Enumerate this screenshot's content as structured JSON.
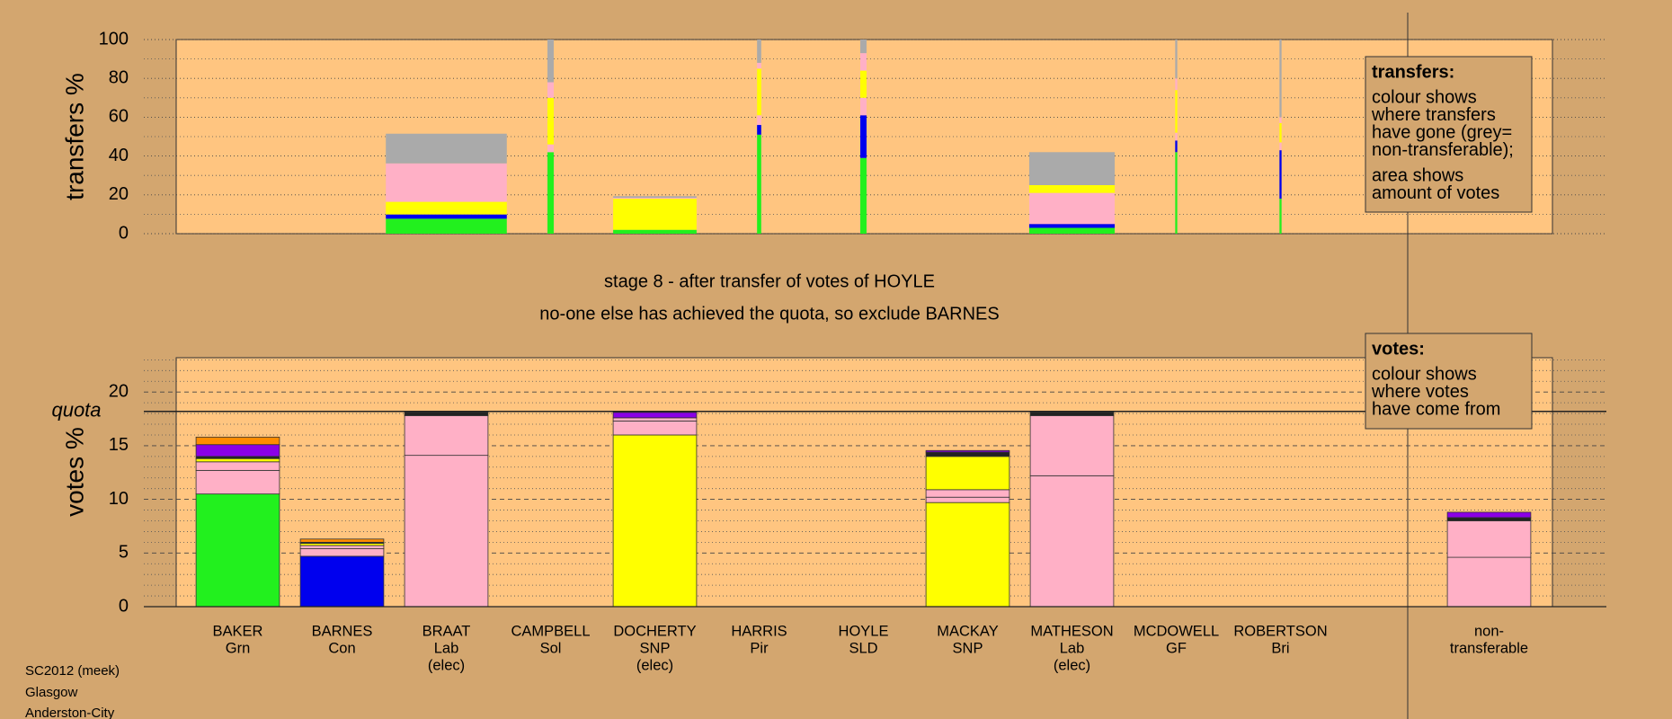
{
  "chart_data": [
    {
      "type": "stacked-bar",
      "ylabel": "transfers %",
      "ylim": [
        0,
        100
      ],
      "yticks": [
        0,
        20,
        40,
        60,
        80,
        100
      ],
      "minor_yticks": [
        10,
        30,
        50,
        70,
        90
      ],
      "grid_style": "dotted",
      "widths": [
        0,
        0,
        1.16,
        0.06,
        0.8,
        0.04,
        0.06,
        0,
        0.82,
        0.02,
        0.02,
        0
      ],
      "series": [
        {
          "color": "#22f01e",
          "values": [
            0,
            0,
            7.7,
            42,
            2,
            51,
            39,
            0,
            3,
            42,
            18,
            0
          ]
        },
        {
          "color": "#0000ee",
          "values": [
            0,
            0,
            2.2,
            0,
            0,
            5,
            22,
            0,
            2,
            6,
            25,
            0
          ]
        },
        {
          "color": "#ffb0c6",
          "values": [
            0,
            0,
            0,
            4,
            0,
            5,
            9,
            0,
            16,
            4,
            4,
            0
          ]
        },
        {
          "color": "#ffff00",
          "values": [
            0,
            0,
            3,
            12,
            0,
            12,
            7,
            0,
            2,
            11,
            5,
            0
          ]
        },
        {
          "color": "#ffff00",
          "values": [
            0,
            0,
            3.5,
            12,
            16,
            12,
            7,
            0,
            2,
            11,
            5,
            0
          ]
        },
        {
          "color": "#ffb0c6",
          "values": [
            0,
            0,
            19.8,
            8,
            0.5,
            3,
            9,
            0,
            0,
            6,
            3,
            0
          ]
        },
        {
          "color": "#aaaaaa",
          "values": [
            0,
            0,
            15.3,
            22,
            0.8,
            12,
            7,
            0,
            17,
            20,
            40,
            0
          ]
        }
      ],
      "legend": {
        "title": "transfers:",
        "lines": [
          [
            "colour shows",
            "where transfers",
            "have gone (grey=",
            "non-transferable);"
          ],
          [
            "area shows",
            "amount of votes"
          ]
        ]
      }
    },
    {
      "type": "stacked-bar",
      "ylabel": "votes %",
      "ylim": [
        0,
        23.2
      ],
      "yticks": [
        0,
        5,
        10,
        15,
        20
      ],
      "minor_yticks": [
        1,
        2,
        3,
        4,
        6,
        7,
        8,
        9,
        11,
        12,
        13,
        14,
        16,
        17,
        18,
        19,
        21,
        22,
        23
      ],
      "grid_style": "dashed",
      "quota": 18.2,
      "quota_label": "quota",
      "categories": [
        [
          "BAKER",
          "Grn"
        ],
        [
          "BARNES",
          "Con"
        ],
        [
          "BRAAT",
          "Lab",
          "(elec)"
        ],
        [
          "CAMPBELL",
          "Sol"
        ],
        [
          "DOCHERTY",
          "SNP",
          "(elec)"
        ],
        [
          "HARRIS",
          "Pir"
        ],
        [
          "HOYLE",
          "SLD"
        ],
        [
          "MACKAY",
          "SNP"
        ],
        [
          "MATHESON",
          "Lab",
          "(elec)"
        ],
        [
          "MCDOWELL",
          "GF"
        ],
        [
          "ROBERTSON",
          "Bri"
        ],
        [
          "non-",
          "transferable"
        ]
      ],
      "series": [
        {
          "colors": [
            "#22f01e",
            "#0000ee",
            "#ffb0c6",
            null,
            "#ffff00",
            null,
            null,
            "#ffff00",
            "#ffb0c6",
            null,
            null,
            null
          ],
          "values": [
            10.5,
            4.7,
            14.1,
            0,
            16.0,
            0,
            0,
            9.7,
            12.2,
            0,
            0,
            0
          ]
        },
        {
          "color": "#ffb0c6",
          "values": [
            2.2,
            0.7,
            0,
            0,
            1.3,
            0,
            0,
            0.5,
            5.6,
            0,
            0,
            4.6
          ]
        },
        {
          "color": "#ffb0c6",
          "values": [
            0.8,
            0.3,
            3.7,
            0,
            0.3,
            0,
            0,
            0.7,
            0,
            0,
            0,
            3.4
          ]
        },
        {
          "color": "#ffff00",
          "values": [
            0.3,
            0.2,
            0,
            0,
            0,
            0,
            0,
            3.1,
            0,
            0,
            0,
            0
          ]
        },
        {
          "color": "#222222",
          "values": [
            0.2,
            0.1,
            0.3,
            0,
            0,
            0,
            0,
            0.4,
            0.3,
            0,
            0,
            0.3
          ]
        },
        {
          "color": "#8a00e6",
          "values": [
            1.1,
            0,
            0,
            0,
            0.5,
            0,
            0,
            0.15,
            0,
            0,
            0,
            0.5
          ]
        },
        {
          "color": "#ff8c00",
          "values": [
            0.7,
            0.3,
            0,
            0,
            0,
            0,
            0,
            0,
            0,
            0,
            0,
            0
          ]
        }
      ],
      "legend": {
        "title": "votes:",
        "lines": [
          [
            "colour shows",
            "where votes",
            "have come from"
          ]
        ]
      }
    }
  ],
  "stage": "stage 8 - after transfer of votes of HOYLE",
  "message": "no-one else has achieved the quota, so exclude BARNES",
  "footer": [
    "SC2012 (meek)",
    "Glasgow",
    "Anderston-City"
  ]
}
